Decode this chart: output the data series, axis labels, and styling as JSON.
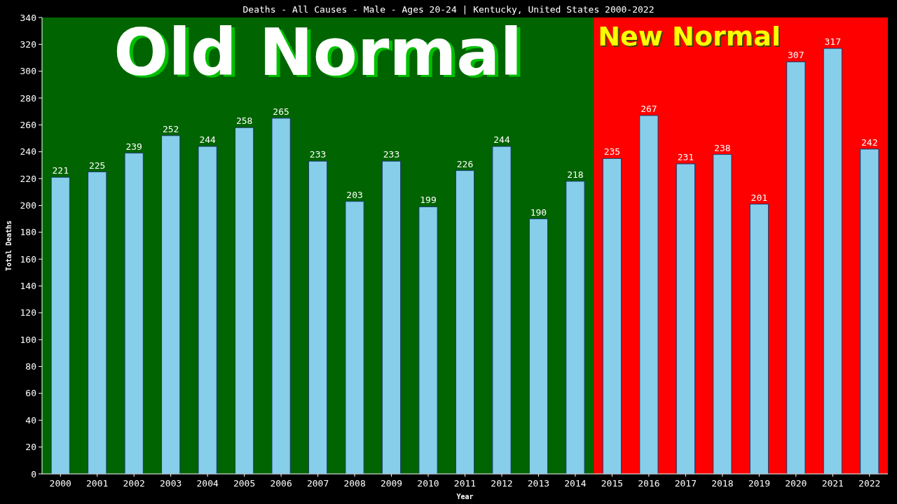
{
  "chart_data": {
    "type": "bar",
    "title": "Deaths - All Causes - Male - Ages 20-24 | Kentucky, United States 2000-2022",
    "xlabel": "Year",
    "ylabel": "Total Deaths",
    "categories": [
      "2000",
      "2001",
      "2002",
      "2003",
      "2004",
      "2005",
      "2006",
      "2007",
      "2008",
      "2009",
      "2010",
      "2011",
      "2012",
      "2013",
      "2014",
      "2015",
      "2016",
      "2017",
      "2018",
      "2019",
      "2020",
      "2021",
      "2022"
    ],
    "values": [
      221,
      225,
      239,
      252,
      244,
      258,
      265,
      233,
      203,
      233,
      199,
      226,
      244,
      190,
      218,
      235,
      267,
      231,
      238,
      201,
      307,
      317,
      242
    ],
    "color": "#87ceeb",
    "ylim": [
      0,
      340
    ],
    "yticks": [
      0,
      20,
      40,
      60,
      80,
      100,
      120,
      140,
      160,
      180,
      200,
      220,
      240,
      260,
      280,
      300,
      320,
      340
    ],
    "grid": false,
    "data_labels": true,
    "bands": [
      {
        "axis": "x",
        "from": "2000",
        "to": "2014",
        "label": "Old Normal",
        "color": "#006400"
      },
      {
        "axis": "x",
        "from": "2015",
        "to": "2022",
        "label": "New Normal",
        "color": "#ff0000"
      }
    ]
  }
}
